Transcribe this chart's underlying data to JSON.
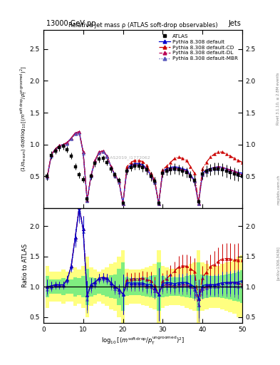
{
  "xlim": [
    0,
    50
  ],
  "ylim_main": [
    0.0,
    2.8
  ],
  "ylim_ratio": [
    0.4,
    2.3
  ],
  "main_yticks": [
    0.5,
    1.0,
    1.5,
    2.0,
    2.5
  ],
  "ratio_yticks": [
    0.5,
    1.0,
    1.5,
    2.0
  ],
  "xdata": [
    1,
    2,
    3,
    4,
    5,
    6,
    7,
    8,
    9,
    10,
    11,
    12,
    13,
    14,
    15,
    16,
    17,
    18,
    19,
    20,
    21,
    22,
    23,
    24,
    25,
    26,
    27,
    28,
    29,
    30,
    31,
    32,
    33,
    34,
    35,
    36,
    37,
    38,
    39,
    40,
    41,
    42,
    43,
    44,
    45,
    46,
    47,
    48,
    49,
    50
  ],
  "atlas_y": [
    0.5,
    0.83,
    0.9,
    0.95,
    0.97,
    0.92,
    0.82,
    0.65,
    0.52,
    0.45,
    0.14,
    0.5,
    0.7,
    0.77,
    0.78,
    0.72,
    0.61,
    0.52,
    0.44,
    0.08,
    0.58,
    0.64,
    0.66,
    0.66,
    0.64,
    0.6,
    0.5,
    0.43,
    0.08,
    0.55,
    0.58,
    0.6,
    0.62,
    0.6,
    0.58,
    0.56,
    0.5,
    0.44,
    0.1,
    0.54,
    0.58,
    0.6,
    0.62,
    0.62,
    0.6,
    0.58,
    0.56,
    0.54,
    0.52,
    0.5
  ],
  "atlas_yerr": [
    0.06,
    0.06,
    0.05,
    0.05,
    0.05,
    0.05,
    0.05,
    0.05,
    0.05,
    0.05,
    0.04,
    0.05,
    0.05,
    0.05,
    0.05,
    0.05,
    0.05,
    0.05,
    0.04,
    0.03,
    0.06,
    0.06,
    0.06,
    0.06,
    0.07,
    0.07,
    0.07,
    0.06,
    0.04,
    0.07,
    0.07,
    0.08,
    0.08,
    0.08,
    0.08,
    0.08,
    0.08,
    0.08,
    0.04,
    0.09,
    0.09,
    0.09,
    0.1,
    0.1,
    0.1,
    0.1,
    0.1,
    0.1,
    0.1,
    0.1
  ],
  "py_default_y": [
    0.5,
    0.84,
    0.93,
    0.98,
    1.0,
    1.03,
    1.1,
    1.18,
    1.2,
    0.88,
    0.12,
    0.52,
    0.75,
    0.88,
    0.9,
    0.82,
    0.65,
    0.52,
    0.42,
    0.07,
    0.62,
    0.68,
    0.7,
    0.7,
    0.68,
    0.62,
    0.52,
    0.42,
    0.07,
    0.58,
    0.62,
    0.64,
    0.65,
    0.64,
    0.62,
    0.6,
    0.52,
    0.44,
    0.08,
    0.55,
    0.6,
    0.62,
    0.64,
    0.65,
    0.64,
    0.62,
    0.6,
    0.58,
    0.56,
    0.55
  ],
  "py_cd_y": [
    0.5,
    0.84,
    0.93,
    0.98,
    1.0,
    1.03,
    1.1,
    1.18,
    1.2,
    0.88,
    0.12,
    0.52,
    0.75,
    0.88,
    0.9,
    0.82,
    0.65,
    0.52,
    0.42,
    0.07,
    0.65,
    0.72,
    0.75,
    0.75,
    0.73,
    0.67,
    0.55,
    0.44,
    0.07,
    0.6,
    0.66,
    0.72,
    0.78,
    0.8,
    0.78,
    0.75,
    0.65,
    0.55,
    0.08,
    0.62,
    0.72,
    0.8,
    0.85,
    0.88,
    0.88,
    0.85,
    0.82,
    0.78,
    0.75,
    0.72
  ],
  "py_dl_y": [
    0.5,
    0.84,
    0.93,
    0.98,
    1.0,
    1.03,
    1.1,
    1.18,
    1.2,
    0.88,
    0.12,
    0.52,
    0.75,
    0.88,
    0.9,
    0.82,
    0.65,
    0.52,
    0.42,
    0.07,
    0.6,
    0.66,
    0.68,
    0.68,
    0.66,
    0.6,
    0.5,
    0.4,
    0.07,
    0.56,
    0.6,
    0.62,
    0.63,
    0.62,
    0.6,
    0.58,
    0.5,
    0.42,
    0.07,
    0.52,
    0.58,
    0.62,
    0.64,
    0.65,
    0.64,
    0.62,
    0.6,
    0.58,
    0.55,
    0.52
  ],
  "py_mbr_y": [
    0.48,
    0.82,
    0.91,
    0.96,
    0.98,
    1.01,
    1.08,
    1.16,
    1.18,
    0.86,
    0.11,
    0.5,
    0.73,
    0.86,
    0.88,
    0.8,
    0.63,
    0.5,
    0.4,
    0.07,
    0.6,
    0.66,
    0.68,
    0.68,
    0.66,
    0.6,
    0.5,
    0.4,
    0.07,
    0.56,
    0.59,
    0.61,
    0.62,
    0.61,
    0.59,
    0.57,
    0.5,
    0.42,
    0.07,
    0.52,
    0.57,
    0.6,
    0.62,
    0.62,
    0.61,
    0.59,
    0.57,
    0.55,
    0.52,
    0.5
  ],
  "color_default": "#0000cc",
  "color_cd": "#cc0000",
  "color_dl": "#bb0055",
  "color_mbr": "#5555bb",
  "color_atlas": "#000000",
  "bg_yellow": "#ffff80",
  "bg_green": "#80ee80",
  "ratio_yellow_lo": [
    0.65,
    0.75,
    0.75,
    0.75,
    0.72,
    0.75,
    0.75,
    0.68,
    0.72,
    0.65,
    0.5,
    0.68,
    0.72,
    0.75,
    0.72,
    0.68,
    0.62,
    0.6,
    0.5,
    0.4,
    0.7,
    0.72,
    0.72,
    0.72,
    0.7,
    0.68,
    0.65,
    0.62,
    0.4,
    0.65,
    0.68,
    0.7,
    0.7,
    0.7,
    0.68,
    0.65,
    0.62,
    0.6,
    0.4,
    0.6,
    0.62,
    0.65,
    0.65,
    0.65,
    0.62,
    0.6,
    0.58,
    0.55,
    0.5,
    0.48
  ],
  "ratio_yellow_hi": [
    1.35,
    1.25,
    1.25,
    1.25,
    1.28,
    1.25,
    1.25,
    1.32,
    1.28,
    1.35,
    1.5,
    1.32,
    1.28,
    1.25,
    1.28,
    1.32,
    1.38,
    1.4,
    1.5,
    1.6,
    1.3,
    1.28,
    1.28,
    1.28,
    1.3,
    1.32,
    1.35,
    1.38,
    1.6,
    1.35,
    1.32,
    1.3,
    1.3,
    1.3,
    1.32,
    1.35,
    1.38,
    1.4,
    1.6,
    1.4,
    1.38,
    1.35,
    1.35,
    1.35,
    1.38,
    1.4,
    1.42,
    1.45,
    1.5,
    1.52
  ],
  "ratio_green_lo": [
    0.82,
    0.88,
    0.88,
    0.88,
    0.86,
    0.88,
    0.88,
    0.84,
    0.86,
    0.82,
    0.7,
    0.84,
    0.86,
    0.88,
    0.86,
    0.84,
    0.81,
    0.8,
    0.7,
    0.6,
    0.85,
    0.86,
    0.86,
    0.86,
    0.85,
    0.84,
    0.82,
    0.81,
    0.6,
    0.82,
    0.84,
    0.85,
    0.85,
    0.85,
    0.84,
    0.82,
    0.81,
    0.8,
    0.6,
    0.8,
    0.81,
    0.82,
    0.82,
    0.82,
    0.81,
    0.8,
    0.79,
    0.77,
    0.75,
    0.73
  ],
  "ratio_green_hi": [
    1.18,
    1.12,
    1.12,
    1.12,
    1.14,
    1.12,
    1.12,
    1.16,
    1.14,
    1.18,
    1.3,
    1.16,
    1.14,
    1.12,
    1.14,
    1.16,
    1.19,
    1.2,
    1.3,
    1.4,
    1.15,
    1.14,
    1.14,
    1.14,
    1.15,
    1.16,
    1.18,
    1.19,
    1.4,
    1.18,
    1.16,
    1.15,
    1.15,
    1.15,
    1.16,
    1.18,
    1.19,
    1.2,
    1.4,
    1.2,
    1.19,
    1.18,
    1.18,
    1.18,
    1.19,
    1.2,
    1.21,
    1.23,
    1.25,
    1.27
  ]
}
